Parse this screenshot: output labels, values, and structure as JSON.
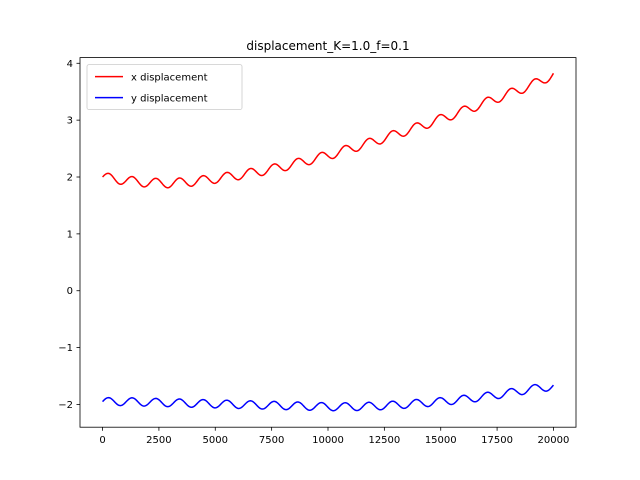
{
  "chart_data": {
    "type": "line",
    "title": "displacement_K=1.0_f=0.1",
    "xlabel": "",
    "ylabel": "",
    "xlim": [
      -1000,
      21000
    ],
    "ylim": [
      -2.4,
      4.1
    ],
    "xticks": [
      0,
      2500,
      5000,
      7500,
      10000,
      12500,
      15000,
      17500,
      20000
    ],
    "xtick_labels": [
      "0",
      "2500",
      "5000",
      "7500",
      "10000",
      "12500",
      "15000",
      "17500",
      "20000"
    ],
    "yticks": [
      -2,
      -1,
      0,
      1,
      2,
      3,
      4
    ],
    "ytick_labels": [
      "−2",
      "−1",
      "0",
      "1",
      "2",
      "3",
      "4"
    ],
    "grid": false,
    "legend": {
      "placement": "top-left"
    },
    "x": [
      0,
      1000,
      2000,
      3000,
      4000,
      5000,
      6000,
      7000,
      8000,
      9000,
      10000,
      11000,
      12000,
      13000,
      14000,
      15000,
      16000,
      17000,
      18000,
      19000,
      20000
    ],
    "series": [
      {
        "name": "x displacement",
        "color": "#ff0000",
        "base": [
          2.0,
          1.94,
          1.9,
          1.89,
          1.92,
          1.97,
          2.03,
          2.1,
          2.18,
          2.28,
          2.38,
          2.5,
          2.62,
          2.75,
          2.88,
          3.02,
          3.16,
          3.31,
          3.46,
          3.61,
          3.8
        ],
        "osc_amp": 0.08,
        "osc_period": 1050
      },
      {
        "name": "y displacement",
        "color": "#0000ff",
        "base": [
          -1.95,
          -1.95,
          -1.96,
          -1.97,
          -1.98,
          -1.99,
          -2.0,
          -2.01,
          -2.02,
          -2.03,
          -2.04,
          -2.04,
          -2.03,
          -2.01,
          -1.98,
          -1.95,
          -1.91,
          -1.86,
          -1.8,
          -1.73,
          -1.68
        ],
        "osc_amp": 0.07,
        "osc_period": 1050
      }
    ]
  }
}
